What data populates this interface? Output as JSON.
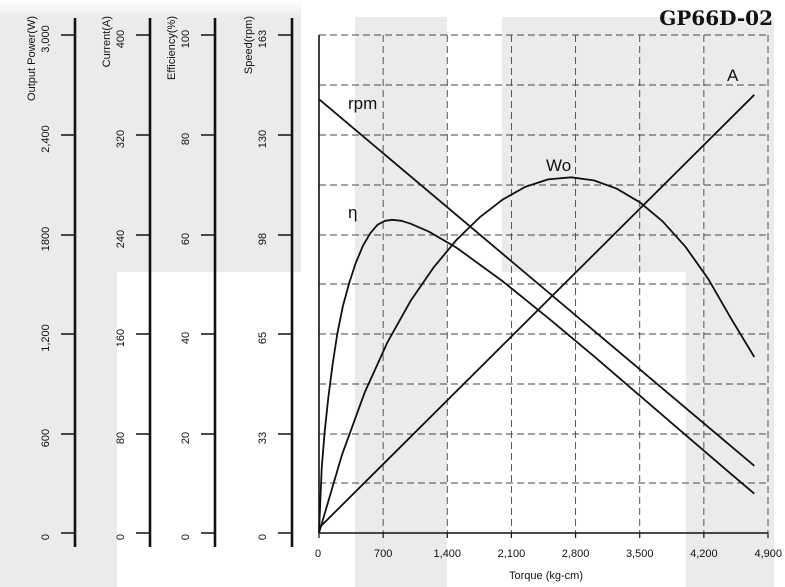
{
  "title": "GP66D-02",
  "chart_data": {
    "type": "line",
    "xlabel": "Torque  (kg-cm)",
    "x_ticks": [
      "0",
      "700",
      "1,400",
      "2,100",
      "2,800",
      "3,500",
      "4,200",
      "4,900"
    ],
    "xlim": [
      0,
      4900
    ],
    "grid": true,
    "y_axes": [
      {
        "name": "Output Power(W)",
        "ticks": [
          "0",
          "600",
          "1,200",
          "1800",
          "2,400",
          "3,000"
        ],
        "ylim": [
          0,
          3000
        ]
      },
      {
        "name": "Current(A)",
        "ticks": [
          "0",
          "80",
          "160",
          "240",
          "320",
          "400"
        ],
        "ylim": [
          0,
          400
        ]
      },
      {
        "name": "Efficiency(%)",
        "ticks": [
          "0",
          "20",
          "40",
          "60",
          "80",
          "100"
        ],
        "ylim": [
          0,
          100
        ]
      },
      {
        "name": "Speed(rpm)",
        "ticks": [
          "0",
          "33",
          "65",
          "98",
          "130",
          "163"
        ],
        "ylim": [
          0,
          163
        ]
      }
    ],
    "series": [
      {
        "name": "rpm",
        "axis": "Speed(rpm)",
        "x": [
          0,
          4750
        ],
        "y": [
          142,
          22
        ]
      },
      {
        "name": "A",
        "axis": "Current(A)",
        "x": [
          0,
          4750
        ],
        "y": [
          4,
          352
        ]
      },
      {
        "name": "η",
        "axis": "Efficiency(%)",
        "x": [
          0,
          30,
          60,
          100,
          150,
          200,
          260,
          330,
          400,
          480,
          560,
          640,
          720,
          800,
          900,
          1000,
          1200,
          1500,
          2000,
          2500,
          3000,
          3500,
          4000,
          4500,
          4750
        ],
        "y": [
          0,
          13,
          20,
          27,
          34,
          40,
          45.5,
          50.2,
          54.2,
          57.7,
          60.2,
          61.9,
          62.7,
          62.9,
          62.7,
          62.1,
          60.5,
          57.3,
          50.6,
          43.2,
          35.5,
          27.6,
          19.7,
          11.8,
          7.9
        ]
      },
      {
        "name": "Wo",
        "axis": "Output Power(W)",
        "x": [
          0,
          250,
          500,
          750,
          1000,
          1250,
          1500,
          1750,
          2000,
          2250,
          2500,
          2750,
          3000,
          3250,
          3500,
          3750,
          4000,
          4250,
          4500,
          4750
        ],
        "y": [
          0,
          469,
          848,
          1152,
          1398,
          1599,
          1765,
          1900,
          2007,
          2085,
          2130,
          2143,
          2124,
          2074,
          1993,
          1878,
          1724,
          1529,
          1290,
          1060
        ]
      }
    ],
    "series_labels": [
      "rpm",
      "η",
      "Wo",
      "A"
    ]
  }
}
